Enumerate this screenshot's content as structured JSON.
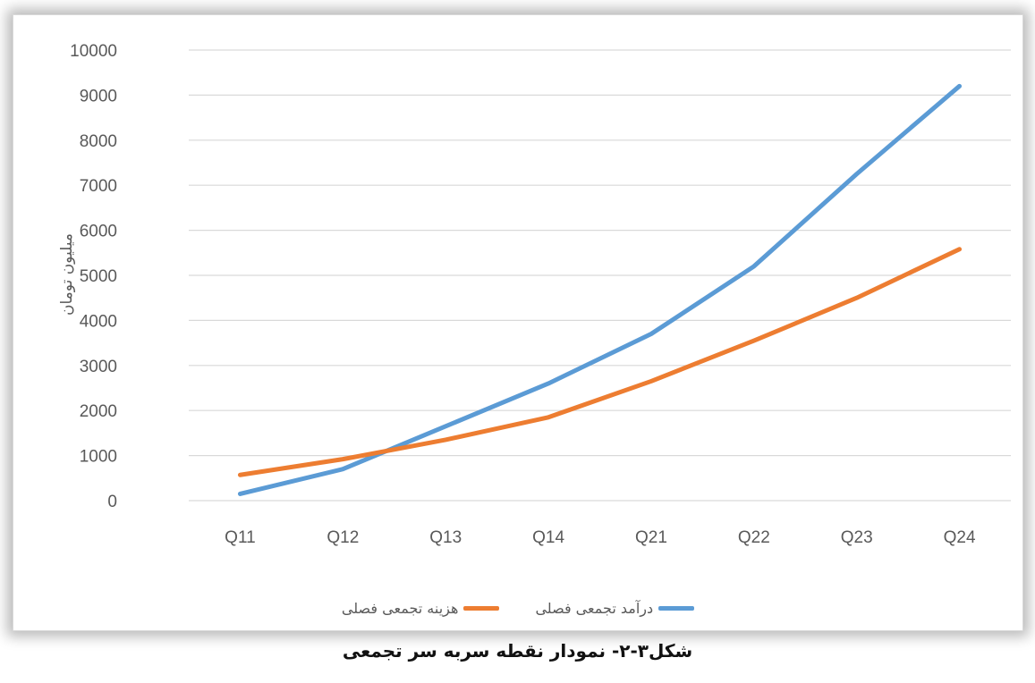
{
  "chart_data": {
    "type": "line",
    "categories": [
      "Q11",
      "Q12",
      "Q13",
      "Q14",
      "Q21",
      "Q22",
      "Q23",
      "Q24"
    ],
    "series": [
      {
        "name": "درآمد تجمعی فصلی",
        "color": "#5b9bd5",
        "values": [
          150,
          700,
          1650,
          2600,
          3700,
          5200,
          7250,
          9200
        ]
      },
      {
        "name": "هزینه تجمعی فصلی",
        "color": "#ed7d31",
        "values": [
          570,
          920,
          1350,
          1850,
          2650,
          3550,
          4500,
          5580
        ]
      }
    ],
    "title": "",
    "xlabel": "",
    "ylabel": "میلیون تومان",
    "ylim": [
      0,
      10000
    ],
    "yticks": [
      "0",
      "1000",
      "2000",
      "3000",
      "4000",
      "5000",
      "6000",
      "7000",
      "8000",
      "9000",
      "10000"
    ],
    "grid": true,
    "legend_position": "bottom"
  },
  "caption": "شکل۳-۲- نمودار نقطه سربه سر تجمعی"
}
